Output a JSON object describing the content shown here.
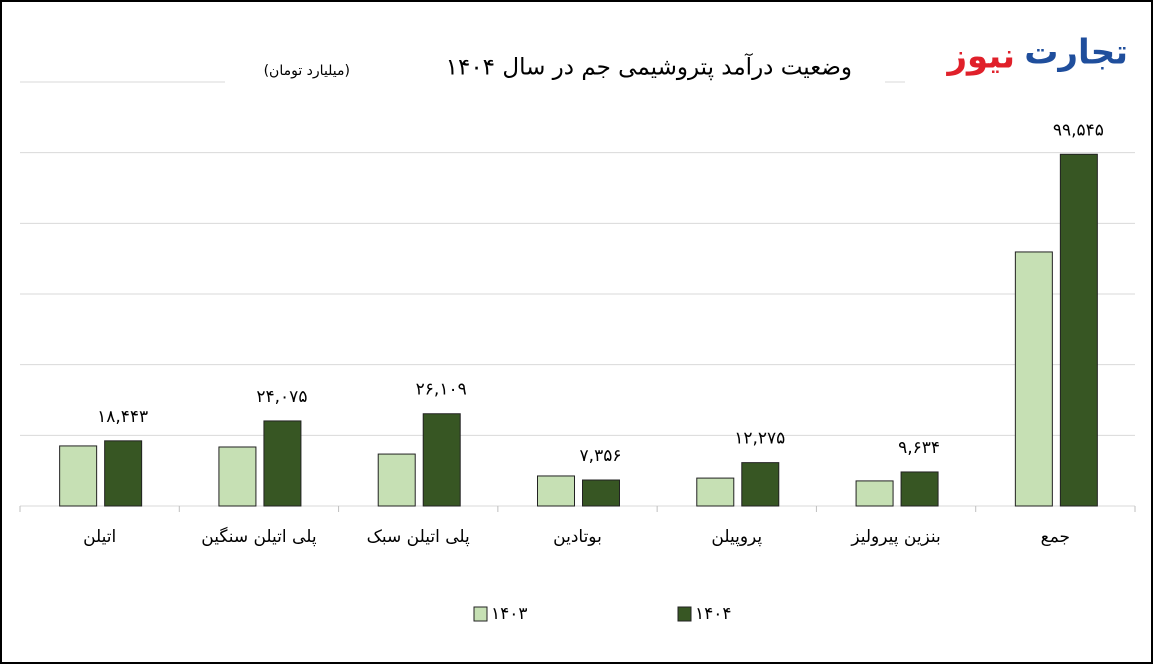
{
  "logo": {
    "first": "تجارت",
    "second": "نیوز"
  },
  "chart_data": {
    "type": "bar",
    "title": "وضعیت درآمد پتروشیمی جم در سال ۱۴۰۴",
    "subtitle": "(میلیارد تومان)",
    "categories": [
      "اتیلن",
      "پلی اتیلن سنگین",
      "پلی اتیلن سبک",
      "بوتادین",
      "پروپیلن",
      "بنزین پیرولیز",
      "جمع"
    ],
    "series": [
      {
        "name": "۱۴۰۳",
        "color": "#c6e0b4",
        "values": [
          17000,
          16700,
          14700,
          8500,
          7900,
          7100,
          71900
        ]
      },
      {
        "name": "۱۴۰۴",
        "color": "#375623",
        "values": [
          18443,
          24075,
          26109,
          7356,
          12275,
          9634,
          99545
        ],
        "value_labels": [
          "۱۸,۴۴۳",
          "۲۴,۰۷۵",
          "۲۶,۱۰۹",
          "۷,۳۵۶",
          "۱۲,۲۷۵",
          "۹,۶۳۴",
          "۹۹,۵۴۵"
        ]
      }
    ],
    "ylim": [
      0,
      120000
    ],
    "yticks": [
      0,
      20000,
      40000,
      60000,
      80000,
      100000,
      120000
    ],
    "grid": true
  }
}
